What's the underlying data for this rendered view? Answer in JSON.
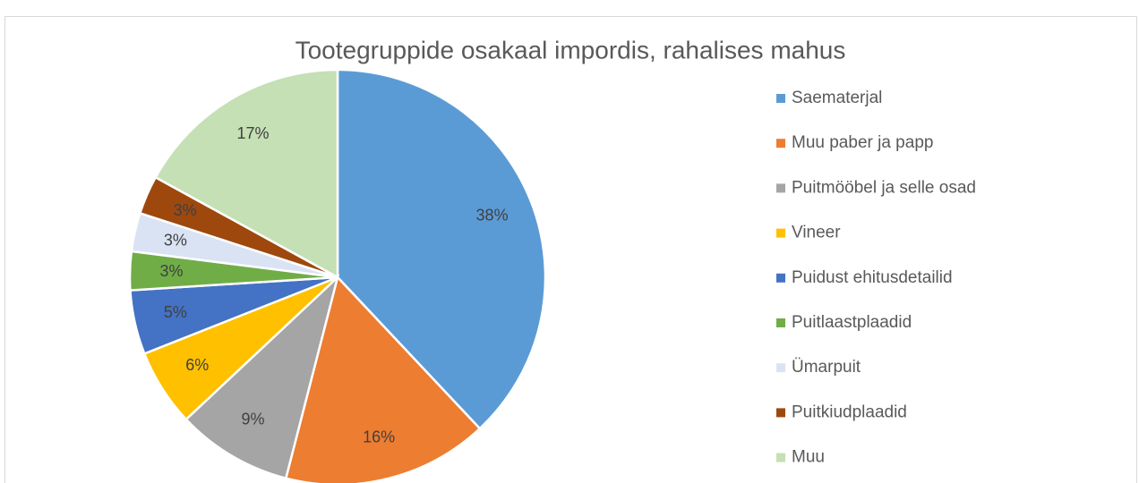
{
  "chart_data": {
    "type": "pie",
    "title": "Tootegruppide osakaal impordis, rahalises mahus",
    "categories": [
      "Saematerjal",
      "Muu paber ja papp",
      "Puitmööbel ja selle osad",
      "Vineer",
      "Puidust ehitusdetailid",
      "Puitlaastplaadid",
      "Ümarpuit",
      "Puitkiudplaadid",
      "Muu"
    ],
    "values": [
      38,
      16,
      9,
      6,
      5,
      3,
      3,
      3,
      17
    ],
    "value_labels": [
      "38%",
      "16%",
      "9%",
      "6%",
      "5%",
      "3%",
      "3%",
      "3%",
      "17%"
    ],
    "colors": [
      "#5b9bd5",
      "#ed7d31",
      "#a5a5a5",
      "#ffc000",
      "#4472c4",
      "#70ad47",
      "#dae3f3",
      "#9e480e",
      "#c5e0b4"
    ],
    "legend": "right"
  }
}
